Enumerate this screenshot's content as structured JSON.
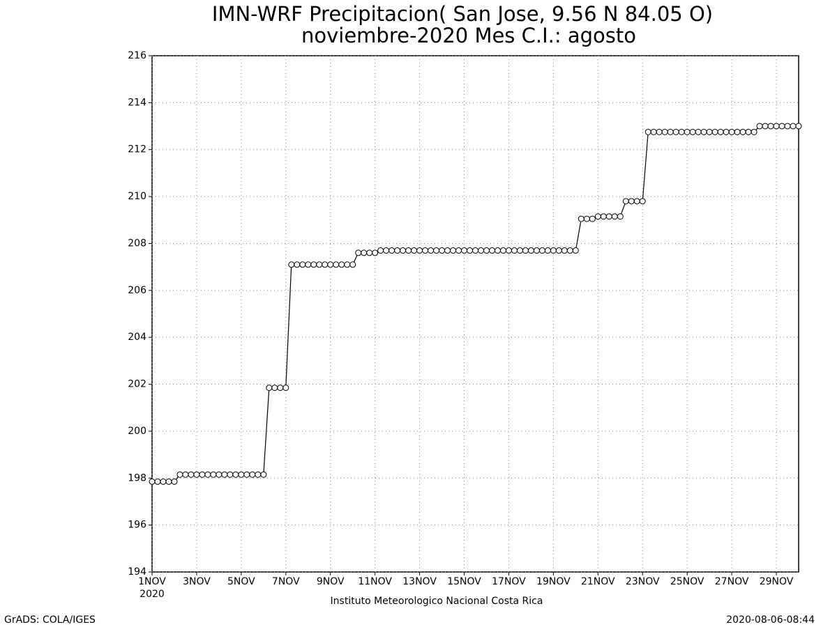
{
  "chart_data": {
    "type": "line",
    "title": "IMN-WRF  Precipitacion( San Jose, 9.56  N 84.05  O)",
    "subtitle": "noviembre-2020 Mes C.I.: agosto",
    "x_sublabel": "2020",
    "xlabel": "Instituto Meteorologico Nacional Costa Rica",
    "footer_left": "GrADS: COLA/IGES",
    "footer_right": "2020-08-06-08:44",
    "grid": true,
    "color": "#000000",
    "marker": "open-circle",
    "xlim": [
      1,
      30
    ],
    "ylim": [
      194,
      216
    ],
    "yticks": [
      194,
      196,
      198,
      200,
      202,
      204,
      206,
      208,
      210,
      212,
      214,
      216
    ],
    "xticks": [
      {
        "value": 1,
        "label": "1NOV"
      },
      {
        "value": 3,
        "label": "3NOV"
      },
      {
        "value": 5,
        "label": "5NOV"
      },
      {
        "value": 7,
        "label": "7NOV"
      },
      {
        "value": 9,
        "label": "9NOV"
      },
      {
        "value": 11,
        "label": "11NOV"
      },
      {
        "value": 13,
        "label": "13NOV"
      },
      {
        "value": 15,
        "label": "15NOV"
      },
      {
        "value": 17,
        "label": "17NOV"
      },
      {
        "value": 19,
        "label": "19NOV"
      },
      {
        "value": 21,
        "label": "21NOV"
      },
      {
        "value": 23,
        "label": "23NOV"
      },
      {
        "value": 25,
        "label": "25NOV"
      },
      {
        "value": 27,
        "label": "27NOV"
      },
      {
        "value": 29,
        "label": "29NOV"
      }
    ],
    "x": [
      1,
      1.25,
      1.5,
      1.75,
      2,
      2.25,
      2.5,
      2.75,
      3,
      3.25,
      3.5,
      3.75,
      4,
      4.25,
      4.5,
      4.75,
      5,
      5.25,
      5.5,
      5.75,
      6,
      6.25,
      6.5,
      6.75,
      7,
      7.25,
      7.5,
      7.75,
      8,
      8.25,
      8.5,
      8.75,
      9,
      9.25,
      9.5,
      9.75,
      10,
      10.25,
      10.5,
      10.75,
      11,
      11.25,
      11.5,
      11.75,
      12,
      12.25,
      12.5,
      12.75,
      13,
      13.25,
      13.5,
      13.75,
      14,
      14.25,
      14.5,
      14.75,
      15,
      15.25,
      15.5,
      15.75,
      16,
      16.25,
      16.5,
      16.75,
      17,
      17.25,
      17.5,
      17.75,
      18,
      18.25,
      18.5,
      18.75,
      19,
      19.25,
      19.5,
      19.75,
      20,
      20.25,
      20.5,
      20.75,
      21,
      21.25,
      21.5,
      21.75,
      22,
      22.25,
      22.5,
      22.75,
      23,
      23.25,
      23.5,
      23.75,
      24,
      24.25,
      24.5,
      24.75,
      25,
      25.25,
      25.5,
      25.75,
      26,
      26.25,
      26.5,
      26.75,
      27,
      27.25,
      27.5,
      27.75,
      28,
      28.25,
      28.5,
      28.75,
      29,
      29.25,
      29.5,
      29.75,
      30
    ],
    "values": [
      197.85,
      197.85,
      197.85,
      197.85,
      197.85,
      198.15,
      198.15,
      198.15,
      198.15,
      198.15,
      198.15,
      198.15,
      198.15,
      198.15,
      198.15,
      198.15,
      198.15,
      198.15,
      198.15,
      198.15,
      198.15,
      201.85,
      201.85,
      201.85,
      201.85,
      207.1,
      207.1,
      207.1,
      207.1,
      207.1,
      207.1,
      207.1,
      207.1,
      207.1,
      207.1,
      207.1,
      207.1,
      207.6,
      207.6,
      207.6,
      207.6,
      207.7,
      207.7,
      207.7,
      207.7,
      207.7,
      207.7,
      207.7,
      207.7,
      207.7,
      207.7,
      207.7,
      207.7,
      207.7,
      207.7,
      207.7,
      207.7,
      207.7,
      207.7,
      207.7,
      207.7,
      207.7,
      207.7,
      207.7,
      207.7,
      207.7,
      207.7,
      207.7,
      207.7,
      207.7,
      207.7,
      207.7,
      207.7,
      207.7,
      207.7,
      207.7,
      207.7,
      209.05,
      209.05,
      209.05,
      209.15,
      209.15,
      209.15,
      209.15,
      209.15,
      209.8,
      209.8,
      209.8,
      209.8,
      212.75,
      212.75,
      212.75,
      212.75,
      212.75,
      212.75,
      212.75,
      212.75,
      212.75,
      212.75,
      212.75,
      212.75,
      212.75,
      212.75,
      212.75,
      212.75,
      212.75,
      212.75,
      212.75,
      212.75,
      213.0,
      213.0,
      213.0,
      213.0,
      213.0,
      213.0,
      213.0,
      213.0
    ]
  }
}
